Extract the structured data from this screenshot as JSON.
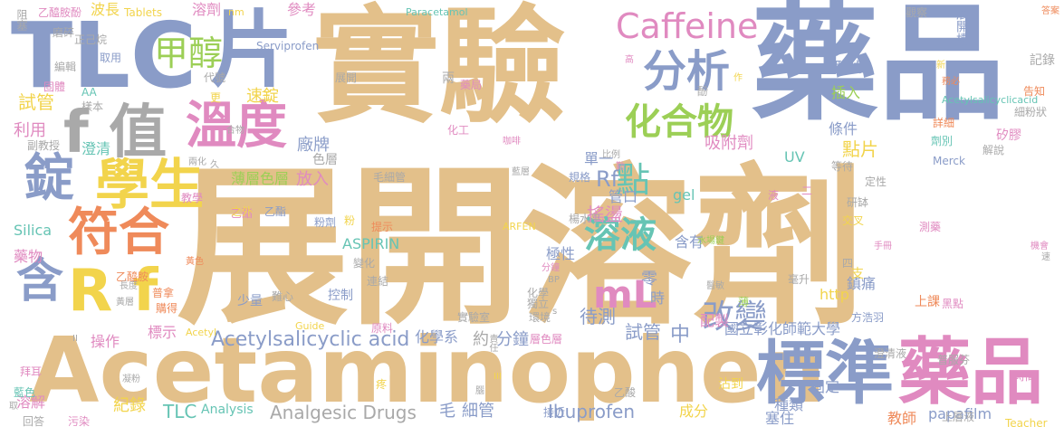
{
  "palette": {
    "tan": "#e3c08a",
    "blue": "#8a9cc8",
    "pink": "#e08ac0",
    "green": "#9ccf56",
    "teal": "#66c4b4",
    "orange": "#ef8a5a",
    "yellow": "#f2d44c",
    "gray": "#a9a9a9"
  },
  "words": [
    {
      "text": "展開溶劑",
      "color": "tan"
    },
    {
      "text": "實驗",
      "color": "tan"
    },
    {
      "text": "藥品",
      "color": "blue"
    },
    {
      "text": "Acetaminophen",
      "color": "tan"
    },
    {
      "text": "TLC",
      "color": "blue"
    },
    {
      "text": "片",
      "color": "blue"
    },
    {
      "text": "標準",
      "color": "blue"
    },
    {
      "text": "藥品",
      "color": "pink"
    },
    {
      "text": "f 值",
      "color": "gray"
    },
    {
      "text": "學生",
      "color": "yellow"
    },
    {
      "text": "溫度",
      "color": "pink"
    },
    {
      "text": "錠",
      "color": "blue"
    },
    {
      "text": "符合",
      "color": "orange"
    },
    {
      "text": "R f",
      "color": "yellow"
    },
    {
      "text": "含",
      "color": "blue"
    },
    {
      "text": "分析",
      "color": "blue"
    },
    {
      "text": "化合物",
      "color": "green"
    },
    {
      "text": "甲醇",
      "color": "green"
    },
    {
      "text": "Caffeine",
      "color": "pink"
    },
    {
      "text": "溶液",
      "color": "teal"
    },
    {
      "text": "mL",
      "color": "pink"
    },
    {
      "text": "改變",
      "color": "blue"
    },
    {
      "text": "點",
      "color": "teal"
    },
    {
      "text": "Rf",
      "color": "blue"
    },
    {
      "text": "Acetylsalicyclic acid",
      "color": "blue"
    },
    {
      "text": "Analgesic Drugs",
      "color": "gray"
    },
    {
      "text": "Ibuprofen",
      "color": "blue"
    },
    {
      "text": "papafilm",
      "color": "blue"
    },
    {
      "text": "國立彰化師範大學",
      "color": "blue"
    },
    {
      "text": "ASPIRIN",
      "color": "teal"
    },
    {
      "text": "薄層色層",
      "color": "green"
    },
    {
      "text": "化學系",
      "color": "blue"
    },
    {
      "text": "分鐘",
      "color": "blue"
    },
    {
      "text": "試管",
      "color": "blue"
    },
    {
      "text": "中",
      "color": "blue"
    },
    {
      "text": "TLC",
      "color": "teal"
    },
    {
      "text": "紀錄",
      "color": "yellow"
    },
    {
      "text": "細管",
      "color": "blue"
    },
    {
      "text": "毛",
      "color": "blue"
    },
    {
      "text": "約",
      "color": "gray"
    },
    {
      "text": "標示",
      "color": "pink"
    },
    {
      "text": "操作",
      "color": "pink"
    },
    {
      "text": "溶解",
      "color": "pink"
    },
    {
      "text": "試管",
      "color": "yellow"
    },
    {
      "text": "利用",
      "color": "pink"
    },
    {
      "text": "澄清",
      "color": "teal"
    },
    {
      "text": "速錠",
      "color": "yellow"
    },
    {
      "text": "廠牌",
      "color": "blue"
    },
    {
      "text": "放入",
      "color": "pink"
    },
    {
      "text": "吸附劑",
      "color": "pink"
    },
    {
      "text": "點片",
      "color": "yellow"
    },
    {
      "text": "條件",
      "color": "blue"
    },
    {
      "text": "型號",
      "color": "blue"
    },
    {
      "text": "插入",
      "color": "green"
    },
    {
      "text": "波長",
      "color": "yellow"
    },
    {
      "text": "溶劑",
      "color": "pink"
    },
    {
      "text": "參考",
      "color": "pink"
    },
    {
      "text": "搖盪",
      "color": "pink"
    },
    {
      "text": "極性",
      "color": "blue"
    },
    {
      "text": "待測",
      "color": "blue"
    },
    {
      "text": "配製",
      "color": "pink"
    },
    {
      "text": "http",
      "color": "yellow"
    },
    {
      "text": "鎮痛",
      "color": "blue"
    },
    {
      "text": "Silica",
      "color": "teal"
    },
    {
      "text": "藥物",
      "color": "pink"
    },
    {
      "text": "gel",
      "color": "teal"
    },
    {
      "text": "UV",
      "color": "teal"
    },
    {
      "text": "管口",
      "color": "blue"
    },
    {
      "text": "含有",
      "color": "blue"
    },
    {
      "text": "種類",
      "color": "blue"
    },
    {
      "text": "固定",
      "color": "blue"
    },
    {
      "text": "塞住",
      "color": "blue"
    },
    {
      "text": "教師",
      "color": "orange"
    },
    {
      "text": "成分",
      "color": "yellow"
    },
    {
      "text": "Analysis",
      "color": "teal"
    },
    {
      "text": "Merck",
      "color": "blue"
    },
    {
      "text": "Serviprofen",
      "color": "blue"
    },
    {
      "text": "Tablets",
      "color": "yellow"
    },
    {
      "text": "Paracetamol",
      "color": "teal"
    },
    {
      "text": "Acetylsalicyclicacid",
      "color": "teal"
    },
    {
      "text": "Acetyl",
      "color": "yellow"
    },
    {
      "text": "Guide",
      "color": "yellow"
    },
    {
      "text": "Teacher",
      "color": "yellow"
    },
    {
      "text": "ARFEN",
      "color": "yellow"
    },
    {
      "text": "nm",
      "color": "yellow"
    },
    {
      "text": "展開槽",
      "color": "blue"
    },
    {
      "text": "記錄",
      "color": "gray"
    },
    {
      "text": "告知",
      "color": "orange"
    },
    {
      "text": "細粉狀",
      "color": "gray"
    },
    {
      "text": "矽膠",
      "color": "pink"
    },
    {
      "text": "解說",
      "color": "gray"
    },
    {
      "text": "詳細",
      "color": "orange"
    },
    {
      "text": "劑別",
      "color": "teal"
    },
    {
      "text": "阻塞",
      "color": "gray"
    },
    {
      "text": "乙醯胺酚",
      "color": "pink"
    },
    {
      "text": "磨碎",
      "color": "gray"
    },
    {
      "text": "正己烷",
      "color": "gray"
    },
    {
      "text": "取用",
      "color": "blue"
    },
    {
      "text": "編輯",
      "color": "gray"
    },
    {
      "text": "固體",
      "color": "pink"
    },
    {
      "text": "AA",
      "color": "teal"
    },
    {
      "text": "副教授",
      "color": "gray"
    },
    {
      "text": "樣本",
      "color": "gray"
    },
    {
      "text": "代號",
      "color": "gray"
    },
    {
      "text": "兩",
      "color": "gray"
    },
    {
      "text": "藥局",
      "color": "pink"
    },
    {
      "text": "化工",
      "color": "pink"
    },
    {
      "text": "觀察",
      "color": "gray"
    },
    {
      "text": "單一",
      "color": "blue"
    },
    {
      "text": "色層",
      "color": "gray"
    },
    {
      "text": "毛細管",
      "color": "gray"
    },
    {
      "text": "乙酯",
      "color": "pink"
    },
    {
      "text": "之外",
      "color": "yellow"
    },
    {
      "text": "粉劑",
      "color": "blue"
    },
    {
      "text": "提示",
      "color": "orange"
    },
    {
      "text": "連結",
      "color": "gray"
    },
    {
      "text": "變化",
      "color": "gray"
    },
    {
      "text": "控制",
      "color": "blue"
    },
    {
      "text": "少量",
      "color": "blue"
    },
    {
      "text": "普拿",
      "color": "orange"
    },
    {
      "text": "購得",
      "color": "orange"
    },
    {
      "text": "乙醯胺",
      "color": "orange"
    },
    {
      "text": "實驗室",
      "color": "gray"
    },
    {
      "text": "責任",
      "color": "gray"
    },
    {
      "text": "層色層",
      "color": "pink"
    },
    {
      "text": "環境",
      "color": "gray"
    },
    {
      "text": "獨立",
      "color": "gray"
    },
    {
      "text": "化學",
      "color": "gray"
    },
    {
      "text": "零",
      "color": "blue"
    },
    {
      "text": "時",
      "color": "blue"
    },
    {
      "text": "支",
      "color": "yellow"
    },
    {
      "text": "上課",
      "color": "orange"
    },
    {
      "text": "黑點",
      "color": "pink"
    },
    {
      "text": "方浩羽",
      "color": "blue"
    },
    {
      "text": "澄清液",
      "color": "gray"
    },
    {
      "text": "普服芬",
      "color": "gray"
    },
    {
      "text": "時間",
      "color": "pink"
    },
    {
      "text": "拜耳",
      "color": "pink"
    },
    {
      "text": "藍色",
      "color": "teal"
    },
    {
      "text": "回答",
      "color": "gray"
    },
    {
      "text": "污染",
      "color": "pink"
    },
    {
      "text": "疼",
      "color": "yellow"
    },
    {
      "text": "沾到",
      "color": "yellow"
    },
    {
      "text": "乙酸",
      "color": "gray"
    },
    {
      "text": "接近",
      "color": "blue"
    },
    {
      "text": "上層液",
      "color": "gray"
    },
    {
      "text": "黃色",
      "color": "orange"
    },
    {
      "text": "機會",
      "color": "pink"
    },
    {
      "text": "手冊",
      "color": "pink"
    },
    {
      "text": "測藥",
      "color": "pink"
    },
    {
      "text": "交叉",
      "color": "yellow"
    },
    {
      "text": "研缽",
      "color": "gray"
    },
    {
      "text": "定性",
      "color": "gray"
    },
    {
      "text": "水場鍵",
      "color": "green"
    },
    {
      "text": "楊水平",
      "color": "gray"
    },
    {
      "text": "規格",
      "color": "blue"
    },
    {
      "text": "教學",
      "color": "pink"
    },
    {
      "text": "毫升",
      "color": "gray"
    },
    {
      "text": "兩化",
      "color": "gray"
    },
    {
      "text": "等待",
      "color": "gray"
    },
    {
      "text": "務必",
      "color": "orange"
    },
    {
      "text": "更",
      "color": "yellow"
    },
    {
      "text": "三",
      "color": "yellow"
    },
    {
      "text": "新",
      "color": "yellow"
    },
    {
      "text": "酚",
      "color": "gray"
    },
    {
      "text": "作",
      "color": "yellow"
    },
    {
      "text": "高",
      "color": "pink"
    },
    {
      "text": "四",
      "color": "gray"
    },
    {
      "text": "薄",
      "color": "green"
    },
    {
      "text": "比例",
      "color": "gray"
    },
    {
      "text": "咖啡",
      "color": "pink"
    },
    {
      "text": "液",
      "color": "pink"
    },
    {
      "text": "二",
      "color": "pink"
    },
    {
      "text": "久",
      "color": "gray"
    },
    {
      "text": "長度",
      "color": "gray"
    },
    {
      "text": "醫敏",
      "color": "gray"
    },
    {
      "text": "粉",
      "color": "yellow"
    },
    {
      "text": "答案",
      "color": "orange"
    },
    {
      "text": "藍層",
      "color": "gray"
    },
    {
      "text": "黃層",
      "color": "gray"
    },
    {
      "text": "原料",
      "color": "pink"
    },
    {
      "text": "難心",
      "color": "gray"
    },
    {
      "text": "BP",
      "color": "gray"
    },
    {
      "text": "II",
      "color": "gray"
    },
    {
      "text": "III",
      "color": "yellow"
    },
    {
      "text": "s",
      "color": "gray"
    },
    {
      "text": "速",
      "color": "gray"
    },
    {
      "text": "取",
      "color": "gray"
    },
    {
      "text": "凝粉",
      "color": "gray"
    },
    {
      "text": "腦",
      "color": "gray"
    },
    {
      "text": "乙酯",
      "color": "blue"
    },
    {
      "text": "分鐘",
      "color": "pink"
    },
    {
      "text": "勤",
      "color": "pink"
    },
    {
      "text": "展開",
      "color": "gray"
    },
    {
      "text": "合物",
      "color": "gray"
    }
  ]
}
